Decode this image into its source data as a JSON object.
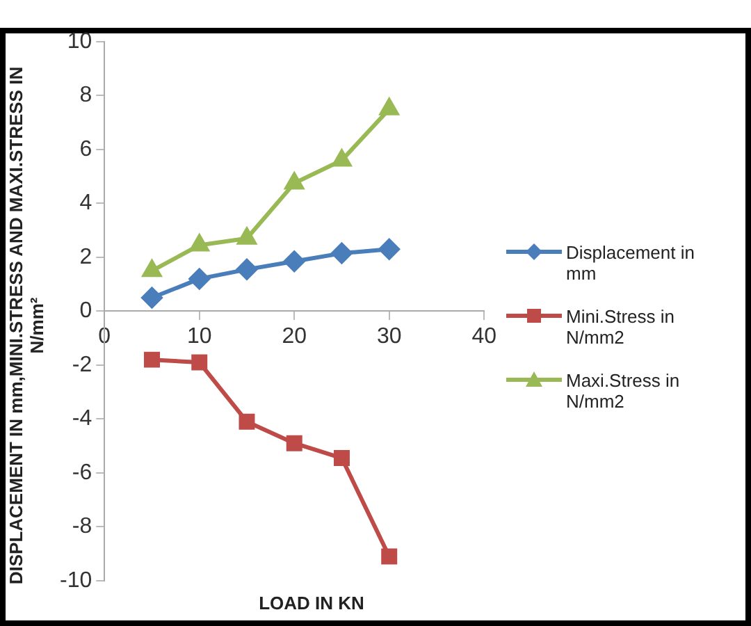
{
  "chart_data": {
    "type": "line",
    "xlabel": "LOAD IN KN",
    "ylabel": "DISPLACEMENT IN mm,MINI.STRESS AND MAXI.STRESS IN N/mm²",
    "xlim": [
      0,
      40
    ],
    "xticks": [
      0,
      10,
      20,
      30,
      40
    ],
    "ylim": [
      -10,
      10
    ],
    "yticks": [
      -10,
      -8,
      -6,
      -4,
      -2,
      0,
      2,
      4,
      6,
      8,
      10
    ],
    "grid": false,
    "legend": "right",
    "line_style": "solid",
    "x": [
      5,
      10,
      15,
      20,
      25,
      30
    ],
    "series": [
      {
        "name": "Displacement in mm",
        "color": "#4a7ebb",
        "marker": "diamond",
        "values": [
          0.5,
          1.2,
          1.55,
          1.85,
          2.15,
          2.3
        ]
      },
      {
        "name": "Mini.Stress in N/mm2",
        "color": "#be4b48",
        "marker": "square",
        "values": [
          -1.8,
          -1.9,
          -4.1,
          -4.9,
          -5.45,
          -9.1
        ]
      },
      {
        "name": "Maxi.Stress in N/mm2",
        "color": "#98b954",
        "marker": "triangle",
        "values": [
          1.5,
          2.45,
          2.7,
          4.75,
          5.6,
          7.5
        ]
      }
    ]
  }
}
